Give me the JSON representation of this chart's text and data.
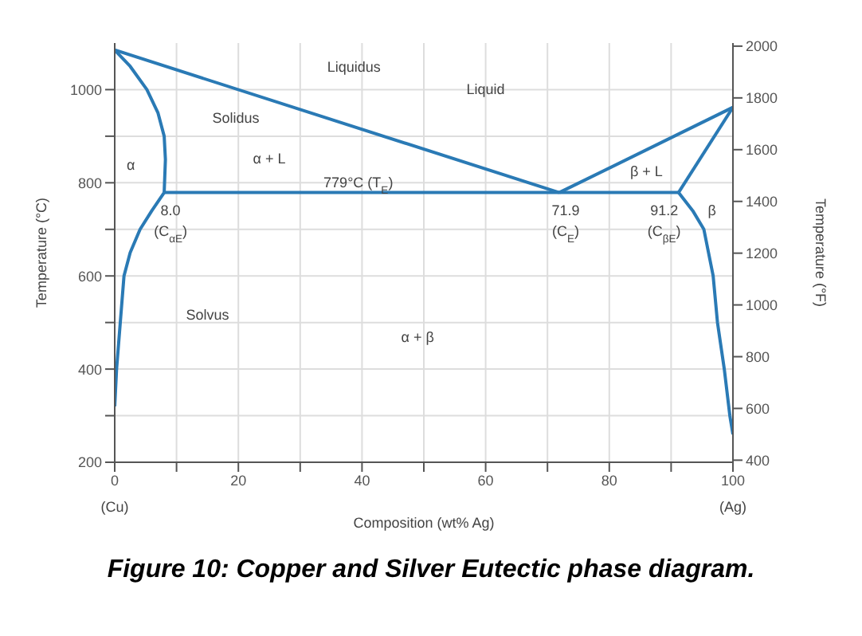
{
  "chart_data": {
    "type": "line",
    "title": "Figure 10: Copper and Silver Eutectic phase diagram.",
    "xlabel": "Composition (wt% Ag)",
    "ylabel": "Temperature (°C)",
    "y2label": "Temperature (°F)",
    "xlim": [
      0,
      100
    ],
    "xticks": [
      0,
      {
        "value": 10,
        "label": null
      },
      20,
      {
        "value": 30,
        "label": null
      },
      40,
      {
        "value": 50,
        "label": null
      },
      60,
      {
        "value": 70,
        "label": null
      },
      80,
      {
        "value": 90,
        "label": null
      },
      100
    ],
    "ylim": [
      200,
      1100
    ],
    "yticks": [
      200,
      {
        "value": 300,
        "label": null
      },
      400,
      {
        "value": 500,
        "label": null
      },
      600,
      {
        "value": 700,
        "label": null
      },
      800,
      {
        "value": 900,
        "label": null
      },
      1000
    ],
    "y2lim": [
      392,
      2012
    ],
    "y2ticks": [
      400,
      600,
      800,
      1000,
      1200,
      1400,
      1600,
      1800,
      2000
    ],
    "grid": true,
    "marker": "none",
    "line_style": "solid",
    "series": [
      {
        "color": "#2a7ab5",
        "x": [
          0,
          71.9
        ],
        "values": [
          1085,
          779
        ]
      },
      {
        "color": "#2a7ab5",
        "x": [
          71.9,
          100
        ],
        "values": [
          779,
          962
        ]
      },
      {
        "color": "#2a7ab5",
        "x": [
          0,
          2.5,
          5.2,
          7,
          8,
          8.2,
          8
        ],
        "values": [
          1085,
          1050,
          1000,
          950,
          900,
          850,
          779
        ]
      },
      {
        "color": "#2a7ab5",
        "x": [
          8,
          6,
          4.1,
          2.5,
          1.5,
          0.9,
          0.3,
          0
        ],
        "values": [
          779,
          740,
          700,
          650,
          600,
          500,
          400,
          320
        ]
      },
      {
        "color": "#2a7ab5",
        "x": [
          8,
          91.2
        ],
        "values": [
          779,
          779
        ]
      },
      {
        "color": "#2a7ab5",
        "x": [
          91.2,
          100
        ],
        "values": [
          779,
          962
        ]
      },
      {
        "color": "#2a7ab5",
        "x": [
          91.2,
          93.5,
          95.3,
          96.8,
          97.5,
          98.6,
          99.5,
          100
        ],
        "values": [
          779,
          740,
          700,
          600,
          500,
          400,
          300,
          260
        ]
      }
    ],
    "annotations": [
      "Liquidus",
      "Solidus",
      "Solvus",
      "Liquid",
      "α + L",
      "α",
      "β + L",
      "β",
      "α + β",
      "779°C (T$_{E}$)",
      "(Cu)",
      "(Ag)",
      {
        "text": "8.0",
        "x": 8,
        "y": 779
      },
      {
        "text": "(C$_{αE}$)",
        "x": 8,
        "y": 779
      },
      {
        "text": "71.9",
        "x": 71.9,
        "y": 779
      },
      {
        "text": "(C$_{E}$)",
        "x": 71.9,
        "y": 779
      },
      {
        "text": "91.2",
        "x": 91.2,
        "y": 779
      },
      {
        "text": "(C$_{βE}$)",
        "x": 91.2,
        "y": 779
      }
    ]
  }
}
